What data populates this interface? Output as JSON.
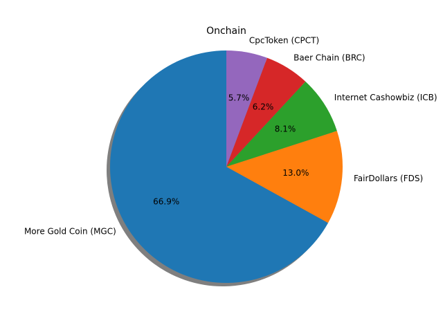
{
  "chart_data": {
    "type": "pie",
    "title": "Onchain",
    "shadow": true,
    "start_angle_deg": 90,
    "direction": "counterclockwise",
    "slices": [
      {
        "label": "More Gold Coin (MGC)",
        "value": 66.9,
        "pct_label": "66.9%",
        "color": "#1f77b4"
      },
      {
        "label": "FairDollars (FDS)",
        "value": 13.0,
        "pct_label": "13.0%",
        "color": "#ff7f0e"
      },
      {
        "label": "Internet Cashowbiz (ICB)",
        "value": 8.1,
        "pct_label": "8.1%",
        "color": "#2ca02c"
      },
      {
        "label": "Baer Chain (BRC)",
        "value": 6.2,
        "pct_label": "6.2%",
        "color": "#d62728"
      },
      {
        "label": "CpcToken (CPCT)",
        "value": 5.7,
        "pct_label": "5.7%",
        "color": "#9467bd"
      }
    ]
  }
}
